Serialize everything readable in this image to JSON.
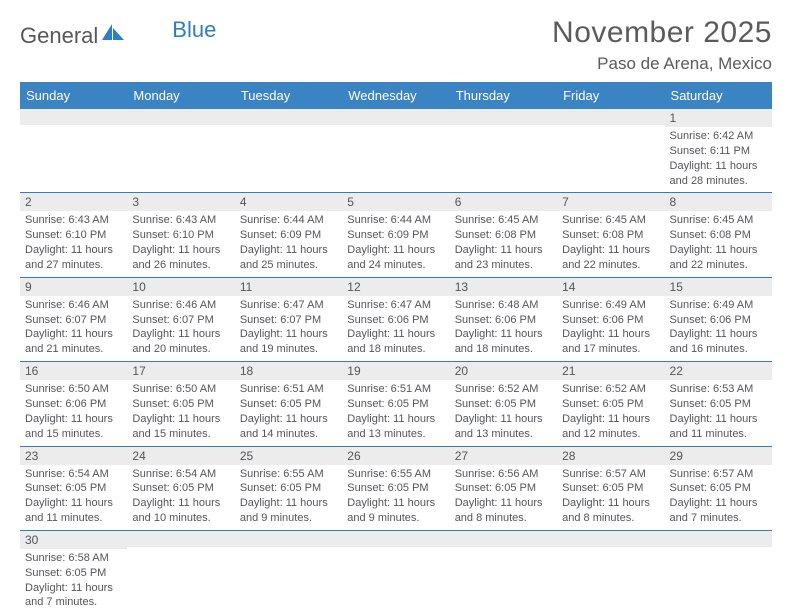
{
  "brand": {
    "part1": "General",
    "part2": "Blue"
  },
  "title": "November 2025",
  "location": "Paso de Arena, Mexico",
  "colors": {
    "header_bg": "#3b84c4",
    "header_text": "#ffffff",
    "rule": "#2f7ec2",
    "daynum_bg": "#ececec",
    "body_text": "#54565a",
    "title_text": "#5b5b5d",
    "logo_gray": "#58585a",
    "logo_blue": "#2f7ec2",
    "page_bg": "#ffffff"
  },
  "day_headers": [
    "Sunday",
    "Monday",
    "Tuesday",
    "Wednesday",
    "Thursday",
    "Friday",
    "Saturday"
  ],
  "weeks": [
    [
      {
        "n": "",
        "sr": "",
        "ss": "",
        "dl1": "",
        "dl2": ""
      },
      {
        "n": "",
        "sr": "",
        "ss": "",
        "dl1": "",
        "dl2": ""
      },
      {
        "n": "",
        "sr": "",
        "ss": "",
        "dl1": "",
        "dl2": ""
      },
      {
        "n": "",
        "sr": "",
        "ss": "",
        "dl1": "",
        "dl2": ""
      },
      {
        "n": "",
        "sr": "",
        "ss": "",
        "dl1": "",
        "dl2": ""
      },
      {
        "n": "",
        "sr": "",
        "ss": "",
        "dl1": "",
        "dl2": ""
      },
      {
        "n": "1",
        "sr": "Sunrise: 6:42 AM",
        "ss": "Sunset: 6:11 PM",
        "dl1": "Daylight: 11 hours",
        "dl2": "and 28 minutes."
      }
    ],
    [
      {
        "n": "2",
        "sr": "Sunrise: 6:43 AM",
        "ss": "Sunset: 6:10 PM",
        "dl1": "Daylight: 11 hours",
        "dl2": "and 27 minutes."
      },
      {
        "n": "3",
        "sr": "Sunrise: 6:43 AM",
        "ss": "Sunset: 6:10 PM",
        "dl1": "Daylight: 11 hours",
        "dl2": "and 26 minutes."
      },
      {
        "n": "4",
        "sr": "Sunrise: 6:44 AM",
        "ss": "Sunset: 6:09 PM",
        "dl1": "Daylight: 11 hours",
        "dl2": "and 25 minutes."
      },
      {
        "n": "5",
        "sr": "Sunrise: 6:44 AM",
        "ss": "Sunset: 6:09 PM",
        "dl1": "Daylight: 11 hours",
        "dl2": "and 24 minutes."
      },
      {
        "n": "6",
        "sr": "Sunrise: 6:45 AM",
        "ss": "Sunset: 6:08 PM",
        "dl1": "Daylight: 11 hours",
        "dl2": "and 23 minutes."
      },
      {
        "n": "7",
        "sr": "Sunrise: 6:45 AM",
        "ss": "Sunset: 6:08 PM",
        "dl1": "Daylight: 11 hours",
        "dl2": "and 22 minutes."
      },
      {
        "n": "8",
        "sr": "Sunrise: 6:45 AM",
        "ss": "Sunset: 6:08 PM",
        "dl1": "Daylight: 11 hours",
        "dl2": "and 22 minutes."
      }
    ],
    [
      {
        "n": "9",
        "sr": "Sunrise: 6:46 AM",
        "ss": "Sunset: 6:07 PM",
        "dl1": "Daylight: 11 hours",
        "dl2": "and 21 minutes."
      },
      {
        "n": "10",
        "sr": "Sunrise: 6:46 AM",
        "ss": "Sunset: 6:07 PM",
        "dl1": "Daylight: 11 hours",
        "dl2": "and 20 minutes."
      },
      {
        "n": "11",
        "sr": "Sunrise: 6:47 AM",
        "ss": "Sunset: 6:07 PM",
        "dl1": "Daylight: 11 hours",
        "dl2": "and 19 minutes."
      },
      {
        "n": "12",
        "sr": "Sunrise: 6:47 AM",
        "ss": "Sunset: 6:06 PM",
        "dl1": "Daylight: 11 hours",
        "dl2": "and 18 minutes."
      },
      {
        "n": "13",
        "sr": "Sunrise: 6:48 AM",
        "ss": "Sunset: 6:06 PM",
        "dl1": "Daylight: 11 hours",
        "dl2": "and 18 minutes."
      },
      {
        "n": "14",
        "sr": "Sunrise: 6:49 AM",
        "ss": "Sunset: 6:06 PM",
        "dl1": "Daylight: 11 hours",
        "dl2": "and 17 minutes."
      },
      {
        "n": "15",
        "sr": "Sunrise: 6:49 AM",
        "ss": "Sunset: 6:06 PM",
        "dl1": "Daylight: 11 hours",
        "dl2": "and 16 minutes."
      }
    ],
    [
      {
        "n": "16",
        "sr": "Sunrise: 6:50 AM",
        "ss": "Sunset: 6:06 PM",
        "dl1": "Daylight: 11 hours",
        "dl2": "and 15 minutes."
      },
      {
        "n": "17",
        "sr": "Sunrise: 6:50 AM",
        "ss": "Sunset: 6:05 PM",
        "dl1": "Daylight: 11 hours",
        "dl2": "and 15 minutes."
      },
      {
        "n": "18",
        "sr": "Sunrise: 6:51 AM",
        "ss": "Sunset: 6:05 PM",
        "dl1": "Daylight: 11 hours",
        "dl2": "and 14 minutes."
      },
      {
        "n": "19",
        "sr": "Sunrise: 6:51 AM",
        "ss": "Sunset: 6:05 PM",
        "dl1": "Daylight: 11 hours",
        "dl2": "and 13 minutes."
      },
      {
        "n": "20",
        "sr": "Sunrise: 6:52 AM",
        "ss": "Sunset: 6:05 PM",
        "dl1": "Daylight: 11 hours",
        "dl2": "and 13 minutes."
      },
      {
        "n": "21",
        "sr": "Sunrise: 6:52 AM",
        "ss": "Sunset: 6:05 PM",
        "dl1": "Daylight: 11 hours",
        "dl2": "and 12 minutes."
      },
      {
        "n": "22",
        "sr": "Sunrise: 6:53 AM",
        "ss": "Sunset: 6:05 PM",
        "dl1": "Daylight: 11 hours",
        "dl2": "and 11 minutes."
      }
    ],
    [
      {
        "n": "23",
        "sr": "Sunrise: 6:54 AM",
        "ss": "Sunset: 6:05 PM",
        "dl1": "Daylight: 11 hours",
        "dl2": "and 11 minutes."
      },
      {
        "n": "24",
        "sr": "Sunrise: 6:54 AM",
        "ss": "Sunset: 6:05 PM",
        "dl1": "Daylight: 11 hours",
        "dl2": "and 10 minutes."
      },
      {
        "n": "25",
        "sr": "Sunrise: 6:55 AM",
        "ss": "Sunset: 6:05 PM",
        "dl1": "Daylight: 11 hours",
        "dl2": "and 9 minutes."
      },
      {
        "n": "26",
        "sr": "Sunrise: 6:55 AM",
        "ss": "Sunset: 6:05 PM",
        "dl1": "Daylight: 11 hours",
        "dl2": "and 9 minutes."
      },
      {
        "n": "27",
        "sr": "Sunrise: 6:56 AM",
        "ss": "Sunset: 6:05 PM",
        "dl1": "Daylight: 11 hours",
        "dl2": "and 8 minutes."
      },
      {
        "n": "28",
        "sr": "Sunrise: 6:57 AM",
        "ss": "Sunset: 6:05 PM",
        "dl1": "Daylight: 11 hours",
        "dl2": "and 8 minutes."
      },
      {
        "n": "29",
        "sr": "Sunrise: 6:57 AM",
        "ss": "Sunset: 6:05 PM",
        "dl1": "Daylight: 11 hours",
        "dl2": "and 7 minutes."
      }
    ],
    [
      {
        "n": "30",
        "sr": "Sunrise: 6:58 AM",
        "ss": "Sunset: 6:05 PM",
        "dl1": "Daylight: 11 hours",
        "dl2": "and 7 minutes."
      },
      {
        "n": "",
        "sr": "",
        "ss": "",
        "dl1": "",
        "dl2": ""
      },
      {
        "n": "",
        "sr": "",
        "ss": "",
        "dl1": "",
        "dl2": ""
      },
      {
        "n": "",
        "sr": "",
        "ss": "",
        "dl1": "",
        "dl2": ""
      },
      {
        "n": "",
        "sr": "",
        "ss": "",
        "dl1": "",
        "dl2": ""
      },
      {
        "n": "",
        "sr": "",
        "ss": "",
        "dl1": "",
        "dl2": ""
      },
      {
        "n": "",
        "sr": "",
        "ss": "",
        "dl1": "",
        "dl2": ""
      }
    ]
  ]
}
